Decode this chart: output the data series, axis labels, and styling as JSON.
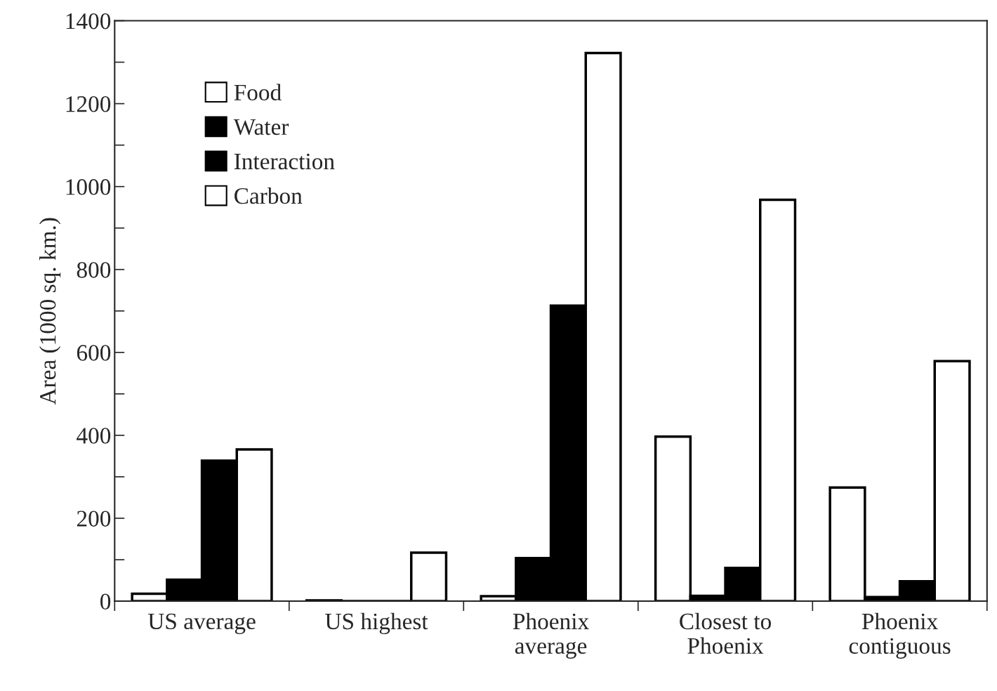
{
  "chart_data": {
    "type": "bar",
    "ylabel": "Area (1000 sq. km.)",
    "categories": [
      "US average",
      "US highest",
      "Phoenix\naverage",
      "Closest to\nPhoenix",
      "Phoenix\ncontiguous"
    ],
    "series": [
      {
        "name": "Food",
        "color": "#ffffff",
        "values": [
          18,
          2,
          12,
          397,
          274
        ]
      },
      {
        "name": "Water",
        "color": "#000000",
        "values": [
          52,
          0,
          104,
          13,
          10
        ]
      },
      {
        "name": "Interaction",
        "color": "#000000",
        "values": [
          339,
          0,
          713,
          80,
          48
        ]
      },
      {
        "name": "Carbon",
        "color": "#ffffff",
        "values": [
          366,
          117,
          1322,
          968,
          579
        ]
      }
    ],
    "ylim": [
      0,
      1400
    ],
    "yticks": [
      0,
      {
        "value": 100,
        "label": null
      },
      200,
      {
        "value": 300,
        "label": null
      },
      400,
      {
        "value": 500,
        "label": null
      },
      600,
      {
        "value": 700,
        "label": null
      },
      800,
      {
        "value": 900,
        "label": null
      },
      1000,
      {
        "value": 1100,
        "label": null
      },
      1200,
      {
        "value": 1300,
        "label": null
      },
      1400
    ],
    "grid": false,
    "legend": "top left"
  }
}
